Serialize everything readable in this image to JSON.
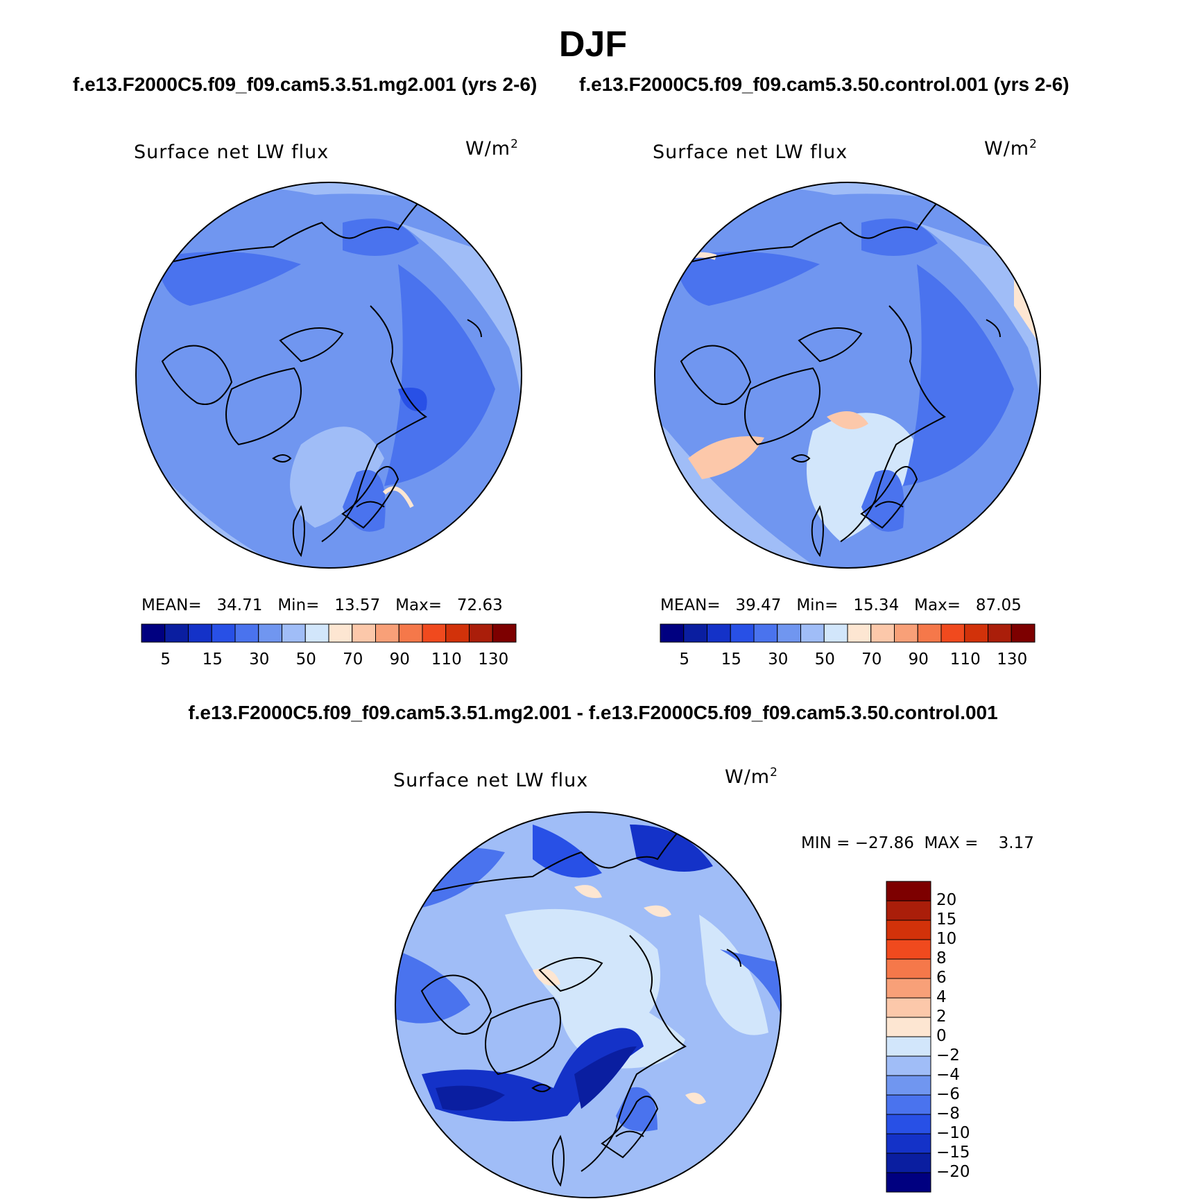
{
  "title": "DJF",
  "cases": {
    "left": "f.e13.F2000C5.f09_f09.cam5.3.51.mg2.001 (yrs 2-6)",
    "right": "f.e13.F2000C5.f09_f09.cam5.3.50.control.001 (yrs 2-6)"
  },
  "diff_title": "f.e13.F2000C5.f09_f09.cam5.3.51.mg2.001 - f.e13.F2000C5.f09_f09.cam5.3.50.control.001",
  "panels": {
    "left": {
      "label": "Surface net LW flux",
      "units": "W/m",
      "units_exp": "2",
      "mean_label": "MEAN=",
      "mean": "34.71",
      "min_label": "Min=",
      "min": "13.57",
      "max_label": "Max=",
      "max": "72.63"
    },
    "right": {
      "label": "Surface net LW flux",
      "units": "W/m",
      "units_exp": "2",
      "mean_label": "MEAN=",
      "mean": "39.47",
      "min_label": "Min=",
      "min": "15.34",
      "max_label": "Max=",
      "max": "87.05"
    },
    "diff": {
      "label": "Surface net LW flux",
      "units": "W/m",
      "units_exp": "2",
      "minmax": "MIN = −27.86  MAX =    3.17"
    }
  },
  "colorbar_abs": {
    "colors": [
      "#000080",
      "#0a1ea0",
      "#1432c8",
      "#2850e6",
      "#4a73ee",
      "#7096f0",
      "#a0bdf7",
      "#d2e6fb",
      "#fde6d2",
      "#fcc8aa",
      "#f8a078",
      "#f5784a",
      "#f04a1e",
      "#d2320a",
      "#aa1e0a",
      "#7d0000"
    ],
    "labels": [
      "5",
      "15",
      "30",
      "50",
      "70",
      "90",
      "110",
      "130"
    ]
  },
  "colorbar_diff": {
    "colors": [
      "#000080",
      "#0a1ea0",
      "#1432c8",
      "#2850e6",
      "#4a73ee",
      "#7096f0",
      "#a0bdf7",
      "#d2e6fb",
      "#fde6d2",
      "#fcc8aa",
      "#f8a078",
      "#f5784a",
      "#f04a1e",
      "#d2320a",
      "#aa1e0a",
      "#7d0000"
    ],
    "labels": [
      "20",
      "15",
      "10",
      "8",
      "6",
      "4",
      "2",
      "0",
      "−2",
      "−4",
      "−6",
      "−8",
      "−10",
      "−15",
      "−20"
    ]
  }
}
